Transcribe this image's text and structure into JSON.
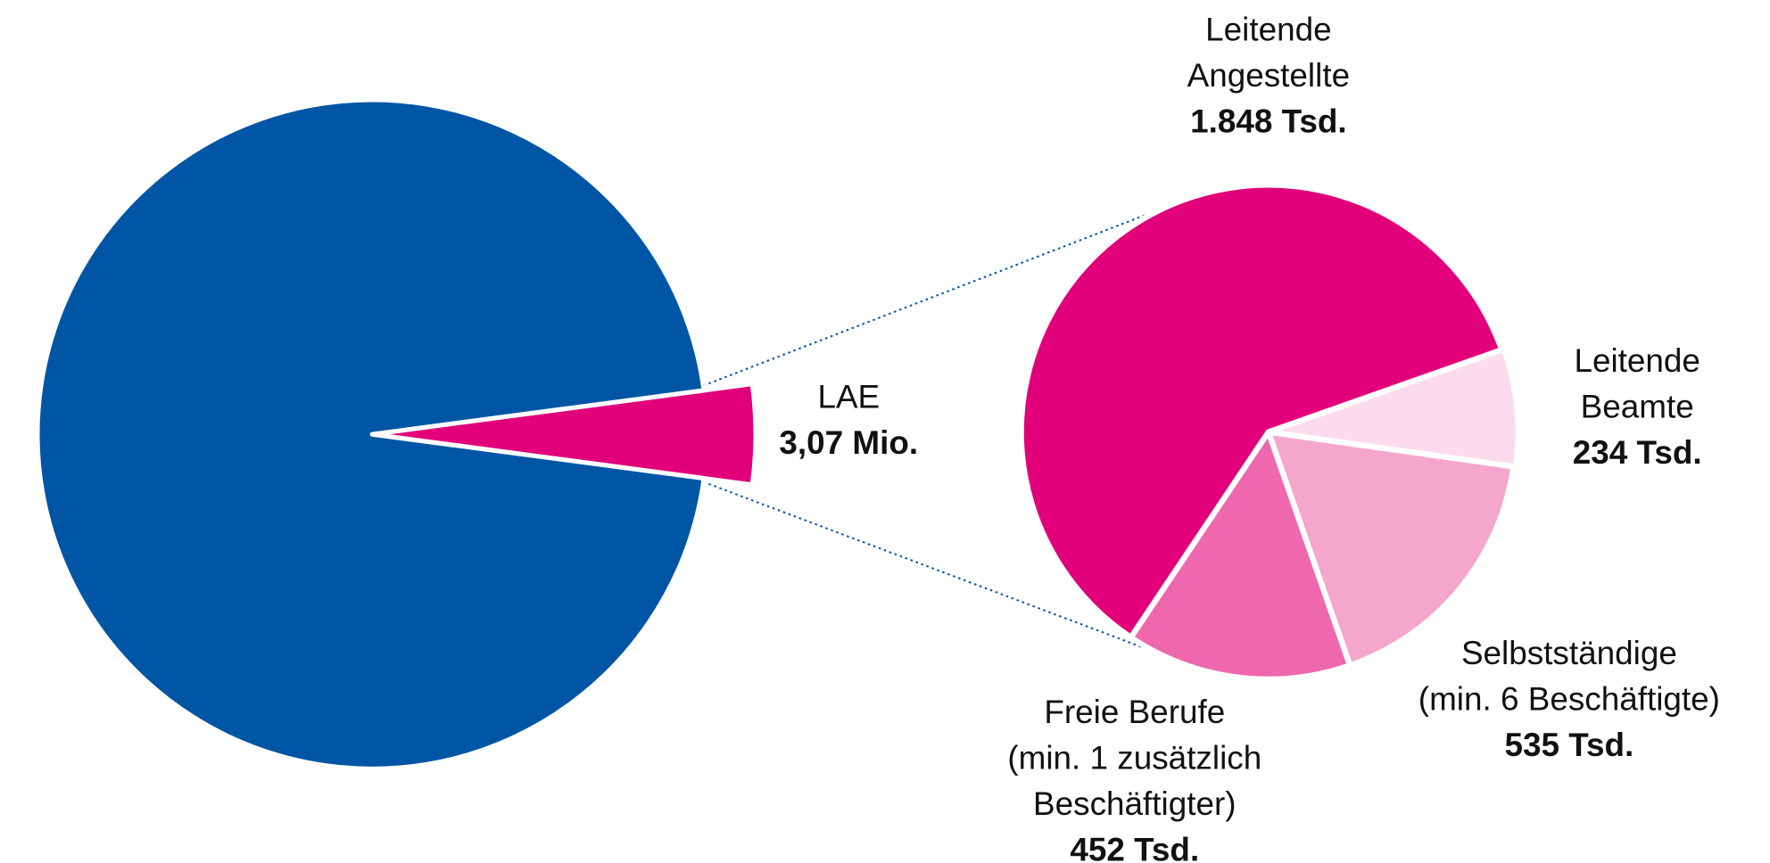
{
  "chart_data": [
    {
      "type": "pie",
      "categories": [
        "LAE",
        null
      ],
      "values": [
        3.07,
        70
      ],
      "value_labels": [
        "3,07 Mio.",
        null
      ],
      "colors": [
        "#e2007a",
        "#0055a4"
      ]
    },
    {
      "type": "pie",
      "categories": [
        [
          "Leitende",
          "Angestellte"
        ],
        [
          "Leitende",
          "Beamte"
        ],
        [
          "Selbstständige",
          "(min. 6 Beschäftigte)"
        ],
        [
          "Freie Berufe",
          "(min. 1 zusätzlich",
          "Beschäftigter)"
        ]
      ],
      "values": [
        1848,
        234,
        535,
        452
      ],
      "value_labels": [
        "1.848 Tsd.",
        "234 Tsd.",
        "535 Tsd.",
        "452 Tsd."
      ],
      "colors": [
        "#e2007a",
        "#fcdcec",
        "#f4a6cc",
        "#ef68ae"
      ]
    }
  ]
}
